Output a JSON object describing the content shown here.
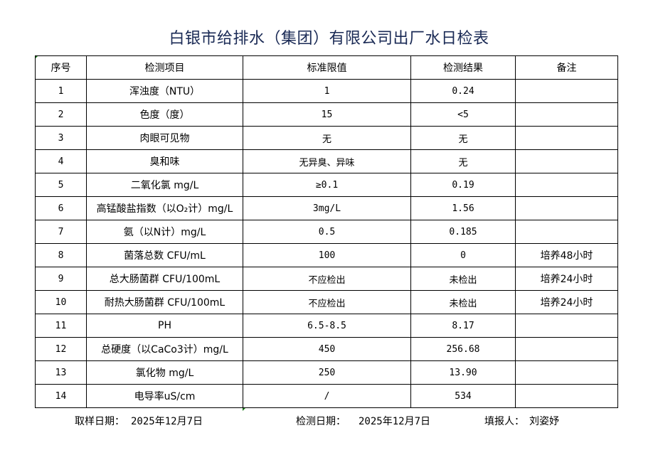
{
  "title": "白银市给排水（集团）有限公司出厂水日检表",
  "headers": [
    "序号",
    "检测项目",
    "标准限值",
    "检测结果",
    "备注"
  ],
  "rows": [
    {
      "no": "1",
      "item": "浑浊度（NTU）",
      "limit": "1",
      "result": "0.24",
      "note": ""
    },
    {
      "no": "2",
      "item": "色度（度）",
      "limit": "15",
      "result": "<5",
      "note": ""
    },
    {
      "no": "3",
      "item": "肉眼可见物",
      "limit": "无",
      "result": "无",
      "note": ""
    },
    {
      "no": "4",
      "item": "臭和味",
      "limit": "无异臭、异味",
      "result": "无",
      "note": ""
    },
    {
      "no": "5",
      "item": "二氧化氯 mg/L",
      "limit": "≥0.1",
      "result": "0.19",
      "note": ""
    },
    {
      "no": "6",
      "item": "高锰酸盐指数（以O₂计）mg/L",
      "limit": "3mg/L",
      "result": "1.56",
      "note": ""
    },
    {
      "no": "7",
      "item": "氨（以N计）mg/L",
      "limit": "0.5",
      "result": "0.185",
      "note": ""
    },
    {
      "no": "8",
      "item": "菌落总数 CFU/mL",
      "limit": "100",
      "result": "0",
      "note": "培养48小时"
    },
    {
      "no": "9",
      "item": "总大肠菌群 CFU/100mL",
      "limit": "不应检出",
      "result": "未检出",
      "note": "培养24小时"
    },
    {
      "no": "10",
      "item": "耐热大肠菌群 CFU/100mL",
      "limit": "不应检出",
      "result": "未检出",
      "note": "培养24小时"
    },
    {
      "no": "11",
      "item": "PH",
      "limit": "6.5-8.5",
      "result": "8.17",
      "note": ""
    },
    {
      "no": "12",
      "item": "总硬度（以CaCo3计）mg/L",
      "limit": "450",
      "result": "256.68",
      "note": ""
    },
    {
      "no": "13",
      "item": "氯化物 mg/L",
      "limit": "250",
      "result": "13.90",
      "note": ""
    },
    {
      "no": "14",
      "item": "电导率uS/cm",
      "limit": "/",
      "result": "534",
      "note": ""
    }
  ],
  "footer": {
    "sampling_label": "取样日期：",
    "sampling_date": "2025年12月7日",
    "testing_label": "检测日期：",
    "testing_date": "2025年12月7日",
    "reporter_label": "填报人：",
    "reporter": "刘姿妤"
  }
}
